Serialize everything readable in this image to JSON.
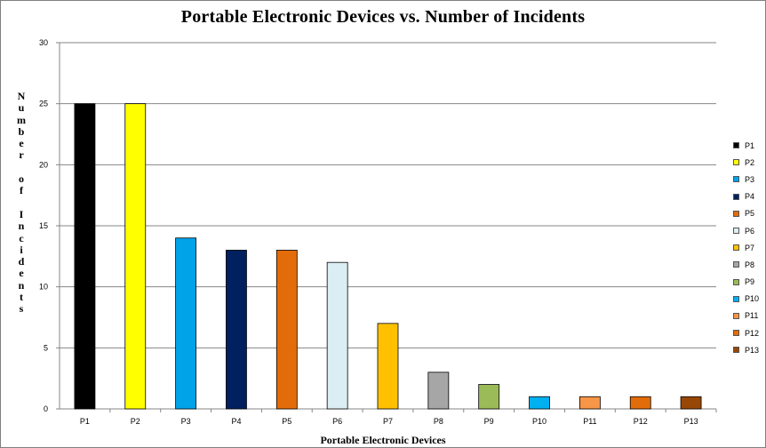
{
  "chart_data": {
    "type": "bar",
    "title": "Portable Electronic Devices vs. Number of Incidents",
    "xlabel": "Portable Electronic Devices",
    "ylabel": "Number of Incidents",
    "categories": [
      "P1",
      "P2",
      "P3",
      "P4",
      "P5",
      "P6",
      "P7",
      "P8",
      "P9",
      "P10",
      "P11",
      "P12",
      "P13"
    ],
    "values": [
      25,
      25,
      14,
      13,
      13,
      12,
      7,
      3,
      2,
      1,
      1,
      1,
      1
    ],
    "colors": [
      "#000000",
      "#ffff00",
      "#00a2e8",
      "#002060",
      "#e36c0a",
      "#dbeef4",
      "#ffc000",
      "#a6a6a6",
      "#9bbb59",
      "#00b0f0",
      "#f79646",
      "#e36c0a",
      "#974706"
    ],
    "ylim": [
      0,
      30
    ],
    "yticks": [
      0,
      5,
      10,
      15,
      20,
      25,
      30
    ],
    "grid": true,
    "legend": {
      "placement": "right",
      "entries": [
        "P1",
        "P2",
        "P3",
        "P4",
        "P5",
        "P6",
        "P7",
        "P8",
        "P9",
        "P10",
        "P11",
        "P12",
        "P13"
      ]
    }
  }
}
